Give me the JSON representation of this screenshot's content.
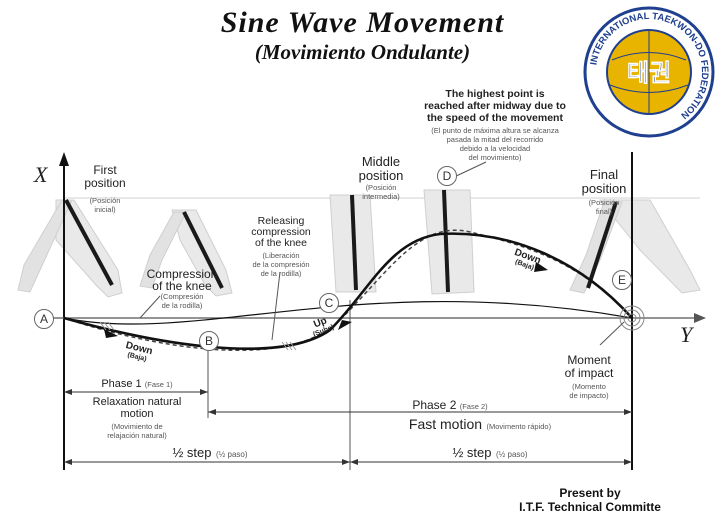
{
  "header": {
    "title": "Sine Wave Movement",
    "subtitle": "(Movimiento Ondulante)"
  },
  "logo": {
    "text_top": "INTERNATIONAL TAEKWON-DO FEDERATION",
    "center_glyphs": "태권",
    "colors": {
      "ring": "#1f3f8f",
      "globe": "#e8b400",
      "glyph": "#ffffff"
    }
  },
  "axes": {
    "x_label": "X",
    "y_label": "Y"
  },
  "annotation_top": {
    "lines": [
      "The highest point is",
      "reached after midway due to",
      "the speed of the movement"
    ],
    "translation": [
      "(El punto de máxima altura se alcanza",
      "pasada la mitad del recorrido",
      "debido a la velocidad",
      "del movimiento)"
    ]
  },
  "positions": {
    "first": {
      "label_lines": [
        "First",
        "position"
      ],
      "translation_lines": [
        "(Posición",
        "inicial)"
      ]
    },
    "middle": {
      "label_lines": [
        "Middle",
        "position"
      ],
      "translation_lines": [
        "(Posición",
        "intermedia)"
      ]
    },
    "final": {
      "label_lines": [
        "Final",
        "position"
      ],
      "translation_lines": [
        "(Posición",
        "final)"
      ]
    }
  },
  "notes": {
    "compression": {
      "lines": [
        "Compression",
        "of the knee"
      ],
      "translation_lines": [
        "(Compresión",
        "de la rodilla)"
      ]
    },
    "releasing": {
      "lines": [
        "Releasing",
        "compression",
        "of the knee"
      ],
      "translation_lines": [
        "(Liberación",
        "de la compresión",
        "de la rodilla)"
      ]
    },
    "impact": {
      "lines": [
        "Moment",
        "of impact"
      ],
      "translation_lines": [
        "(Momento",
        "de impacto)"
      ]
    }
  },
  "points": [
    "A",
    "B",
    "C",
    "D",
    "E"
  ],
  "arrows": {
    "down1": {
      "label": "Down",
      "translation": "(Baja)"
    },
    "up": {
      "label": "Up",
      "translation": "(Sube)"
    },
    "down2": {
      "label": "Down",
      "translation": "(Baja)"
    }
  },
  "phases": {
    "phase1": {
      "label": "Phase 1",
      "translation": "(Fase 1)",
      "desc_lines": [
        "Relaxation natural",
        "motion"
      ],
      "desc_translation_lines": [
        "(Movimiento de",
        "relajación natural)"
      ]
    },
    "phase2": {
      "label": "Phase 2",
      "translation": "(Fase 2)",
      "desc": "Fast motion",
      "desc_translation": "(Movimento rápido)"
    }
  },
  "steps": {
    "step1": {
      "label": "½ step",
      "translation": "(½ paso)"
    },
    "step2": {
      "label": "½ step",
      "translation": "(½ paso)"
    }
  },
  "footer": {
    "lines": [
      "Present by",
      "I.T.F. Technical Committe"
    ]
  },
  "colors": {
    "curve": "#111111",
    "dashed": "#444444",
    "pants": "#e9e9e9",
    "stripe": "#1a1a1a",
    "guide": "#bbbbbb"
  }
}
